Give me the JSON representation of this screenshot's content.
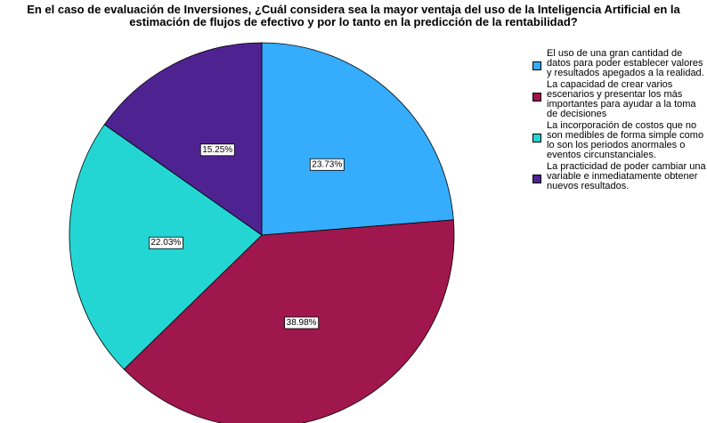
{
  "chart_data": {
    "type": "pie",
    "title": "En el caso de evaluación de Inversiones, ¿Cuál considera sea la mayor ventaja del uso de la Inteligencia Artificial en la estimación de flujos de efectivo y por lo tanto en la predicción de la rentabilidad?",
    "categories": [
      "El uso de una gran cantidad de datos para poder establecer valores y resultados apegados a la realidad.",
      "La capacidad de crear varios escenarios y presentar los más importantes para ayudar a la toma de decisiones",
      "La incorporación de costos que no son medibles de forma simple como lo son los periodos anormales o eventos circunstanciales.",
      "La practicidad de poder cambiar una variable e inmediatamente obtener nuevos resultados."
    ],
    "values": [
      23.73,
      38.98,
      22.03,
      15.25
    ],
    "value_labels": [
      "23.73%",
      "38.98%",
      "22.03%",
      "15.25%"
    ],
    "colors": [
      "#35adfc",
      "#9f174d",
      "#23d6d4",
      "#4e2391"
    ],
    "legend": "right"
  }
}
